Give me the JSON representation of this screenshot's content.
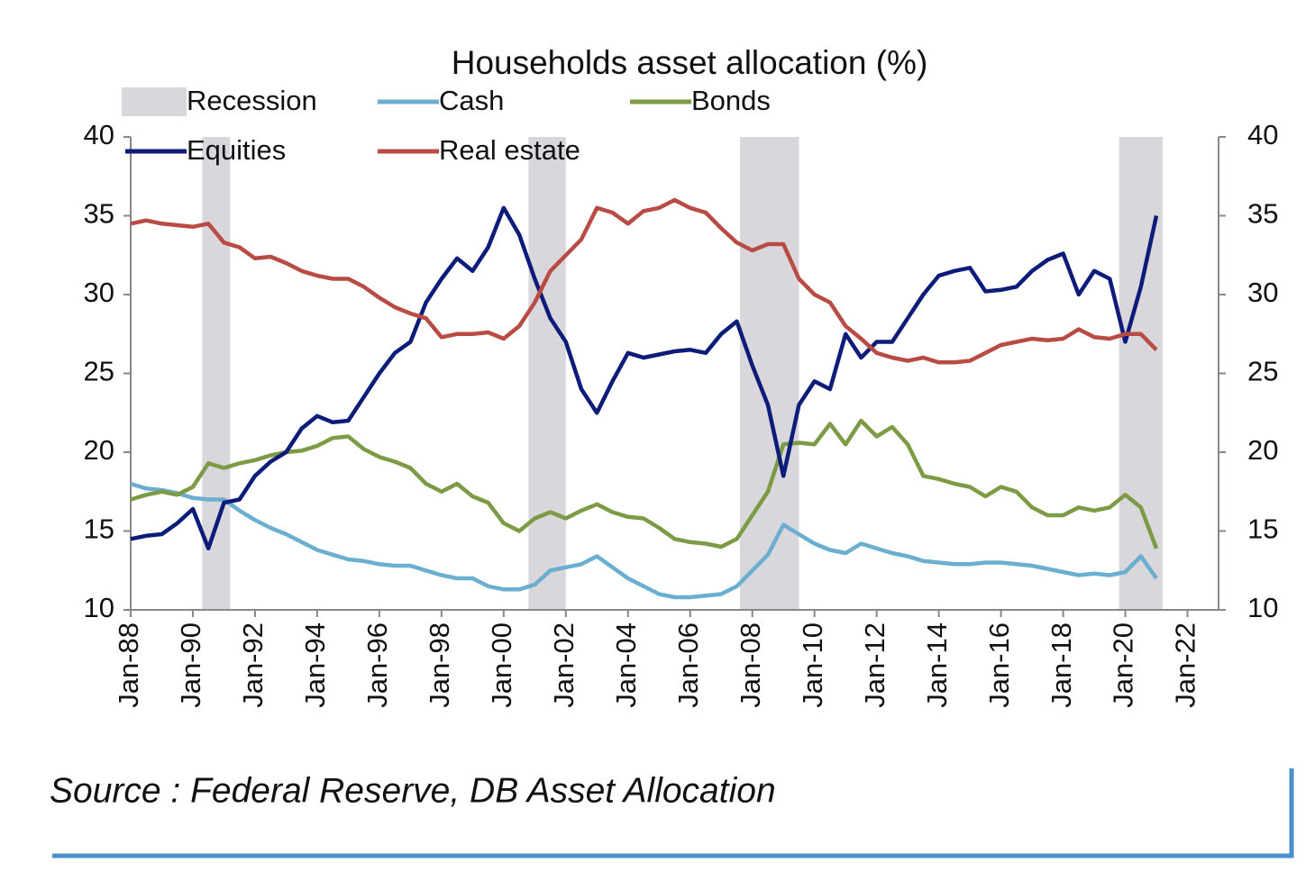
{
  "chart_data": {
    "type": "line",
    "title": "Households asset allocation (%)",
    "source": "Source : Federal Reserve, DB Asset Allocation",
    "recession": {
      "name": "Recession",
      "color": "#d9d6dc",
      "spans": [
        [
          1990.3,
          1991.2
        ],
        [
          2000.8,
          2002.0
        ],
        [
          2007.6,
          2009.5
        ],
        [
          2019.8,
          2021.2
        ]
      ]
    },
    "x": [
      1988.0,
      1988.5,
      1989.0,
      1989.5,
      1990.0,
      1990.5,
      1991.0,
      1991.5,
      1992.0,
      1992.5,
      1993.0,
      1993.5,
      1994.0,
      1994.5,
      1995.0,
      1995.5,
      1996.0,
      1996.5,
      1997.0,
      1997.5,
      1998.0,
      1998.5,
      1999.0,
      1999.5,
      2000.0,
      2000.5,
      2001.0,
      2001.5,
      2002.0,
      2002.5,
      2003.0,
      2003.5,
      2004.0,
      2004.5,
      2005.0,
      2005.5,
      2006.0,
      2006.5,
      2007.0,
      2007.5,
      2008.0,
      2008.5,
      2009.0,
      2009.5,
      2010.0,
      2010.5,
      2011.0,
      2011.5,
      2012.0,
      2012.5,
      2013.0,
      2013.5,
      2014.0,
      2014.5,
      2015.0,
      2015.5,
      2016.0,
      2016.5,
      2017.0,
      2017.5,
      2018.0,
      2018.5,
      2019.0,
      2019.5,
      2020.0,
      2020.5,
      2021.0
    ],
    "series": [
      {
        "name": "Cash",
        "color": "#6aaed0",
        "values": [
          18.0,
          17.7,
          17.6,
          17.4,
          17.1,
          17.0,
          17.0,
          16.3,
          15.7,
          15.2,
          14.8,
          14.3,
          13.8,
          13.5,
          13.2,
          13.1,
          12.9,
          12.8,
          12.8,
          12.5,
          12.2,
          12.0,
          12.0,
          11.5,
          11.3,
          11.3,
          11.6,
          12.5,
          12.7,
          12.9,
          13.4,
          12.7,
          12.0,
          11.5,
          11.0,
          10.8,
          10.8,
          10.9,
          11.0,
          11.5,
          12.5,
          13.5,
          15.4,
          14.8,
          14.2,
          13.8,
          13.6,
          14.2,
          13.9,
          13.6,
          13.4,
          13.1,
          13.0,
          12.9,
          12.9,
          13.0,
          13.0,
          12.9,
          12.8,
          12.6,
          12.4,
          12.2,
          12.3,
          12.2,
          12.4,
          13.4,
          12.0
        ]
      },
      {
        "name": "Bonds",
        "color": "#7d9a45",
        "values": [
          17.0,
          17.3,
          17.5,
          17.3,
          17.8,
          19.3,
          19.0,
          19.3,
          19.5,
          19.8,
          20.0,
          20.1,
          20.4,
          20.9,
          21.0,
          20.2,
          19.7,
          19.4,
          19.0,
          18.0,
          17.5,
          18.0,
          17.2,
          16.8,
          15.5,
          15.0,
          15.8,
          16.2,
          15.8,
          16.3,
          16.7,
          16.2,
          15.9,
          15.8,
          15.2,
          14.5,
          14.3,
          14.2,
          14.0,
          14.5,
          16.0,
          17.5,
          20.5,
          20.6,
          20.5,
          21.8,
          20.5,
          22.0,
          21.0,
          21.6,
          20.5,
          18.5,
          18.3,
          18.0,
          17.8,
          17.2,
          17.8,
          17.5,
          16.5,
          16.0,
          16.0,
          16.5,
          16.3,
          16.5,
          17.3,
          16.5,
          13.9
        ]
      },
      {
        "name": "Equities",
        "color": "#0c1c78",
        "values": [
          14.5,
          14.7,
          14.8,
          15.5,
          16.4,
          13.9,
          16.8,
          17.0,
          18.5,
          19.4,
          20.0,
          21.5,
          22.3,
          21.9,
          22.0,
          23.5,
          25.0,
          26.3,
          27.0,
          29.5,
          31.0,
          32.3,
          31.5,
          33.0,
          35.5,
          33.8,
          31.0,
          28.5,
          27.0,
          24.0,
          22.5,
          24.5,
          26.3,
          26.0,
          26.2,
          26.4,
          26.5,
          26.3,
          27.5,
          28.3,
          25.5,
          23.0,
          18.5,
          23.0,
          24.5,
          24.0,
          27.5,
          26.0,
          27.0,
          27.0,
          28.5,
          30.0,
          31.2,
          31.5,
          31.7,
          30.2,
          30.3,
          30.5,
          31.5,
          32.2,
          32.6,
          30.0,
          31.5,
          31.0,
          27.0,
          30.5,
          35.0
        ]
      },
      {
        "name": "Real estate",
        "color": "#b84c44",
        "values": [
          34.5,
          34.7,
          34.5,
          34.4,
          34.3,
          34.5,
          33.3,
          33.0,
          32.3,
          32.4,
          32.0,
          31.5,
          31.2,
          31.0,
          31.0,
          30.5,
          29.8,
          29.2,
          28.8,
          28.5,
          27.3,
          27.5,
          27.5,
          27.6,
          27.2,
          28.0,
          29.5,
          31.5,
          32.5,
          33.5,
          35.5,
          35.2,
          34.5,
          35.3,
          35.5,
          36.0,
          35.5,
          35.2,
          34.2,
          33.3,
          32.8,
          33.2,
          33.2,
          31.0,
          30.0,
          29.5,
          28.0,
          27.2,
          26.3,
          26.0,
          25.8,
          26.0,
          25.7,
          25.7,
          25.8,
          26.3,
          26.8,
          27.0,
          27.2,
          27.1,
          27.2,
          27.8,
          27.3,
          27.2,
          27.5,
          27.5,
          26.5
        ]
      }
    ],
    "xlim": [
      1988,
      2023
    ],
    "xticks": [
      {
        "value": 1988,
        "label": "Jan-88"
      },
      {
        "value": 1990,
        "label": "Jan-90"
      },
      {
        "value": 1992,
        "label": "Jan-92"
      },
      {
        "value": 1994,
        "label": "Jan-94"
      },
      {
        "value": 1996,
        "label": "Jan-96"
      },
      {
        "value": 1998,
        "label": "Jan-98"
      },
      {
        "value": 2000,
        "label": "Jan-00"
      },
      {
        "value": 2002,
        "label": "Jan-02"
      },
      {
        "value": 2004,
        "label": "Jan-04"
      },
      {
        "value": 2006,
        "label": "Jan-06"
      },
      {
        "value": 2008,
        "label": "Jan-08"
      },
      {
        "value": 2010,
        "label": "Jan-10"
      },
      {
        "value": 2012,
        "label": "Jan-12"
      },
      {
        "value": 2014,
        "label": "Jan-14"
      },
      {
        "value": 2016,
        "label": "Jan-16"
      },
      {
        "value": 2018,
        "label": "Jan-18"
      },
      {
        "value": 2020,
        "label": "Jan-20"
      },
      {
        "value": 2022,
        "label": "Jan-22"
      }
    ],
    "ylim": [
      10,
      40
    ],
    "yticks": [
      10,
      15,
      20,
      25,
      30,
      35,
      40
    ],
    "y2lim": [
      10,
      40
    ],
    "y2ticks": [
      10,
      15,
      20,
      25,
      30,
      35,
      40
    ]
  }
}
